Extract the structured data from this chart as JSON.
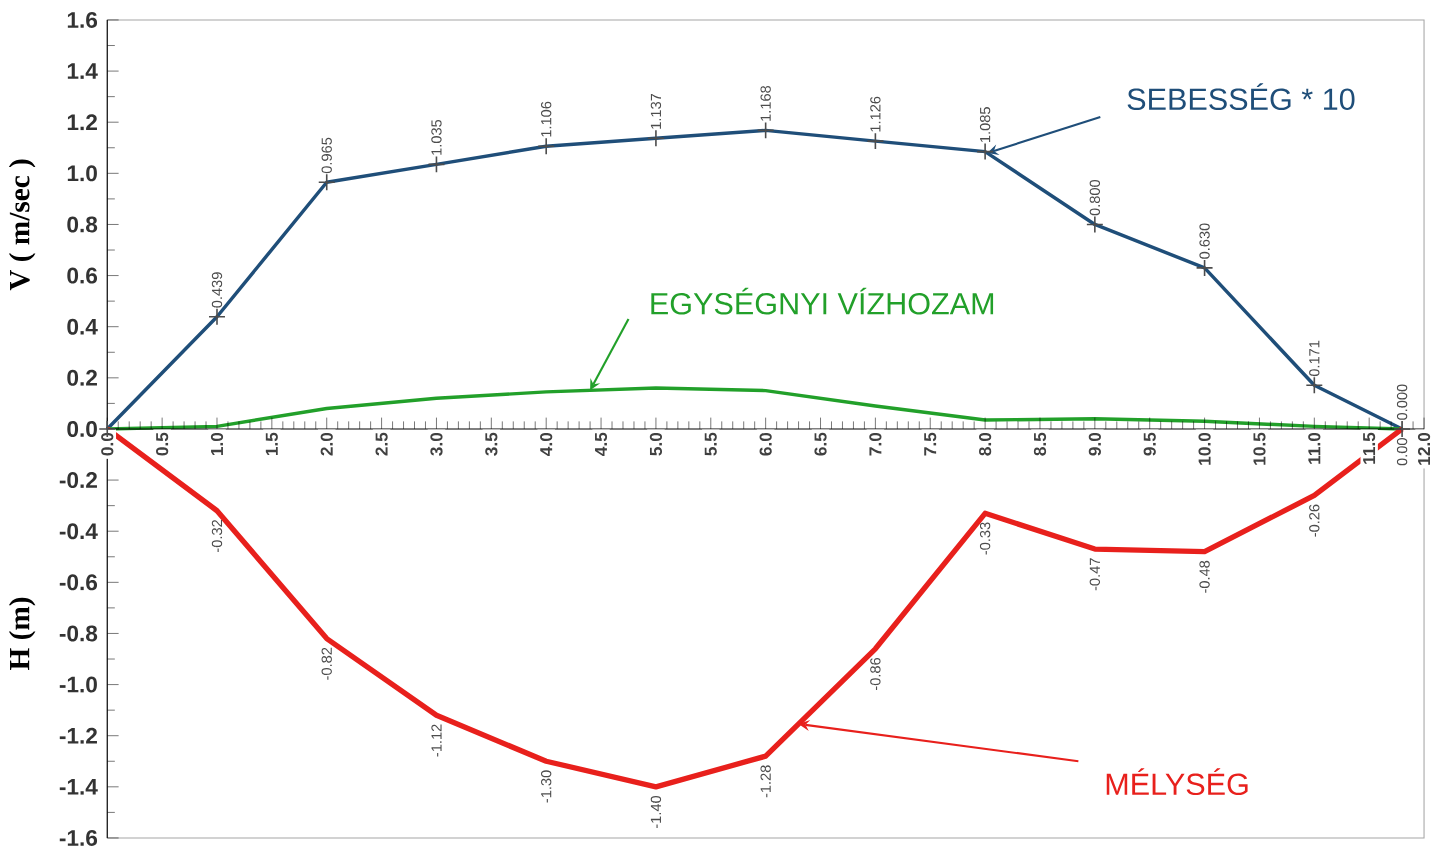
{
  "chart_data": {
    "type": "line",
    "ylabel": "V ( m/sec )",
    "annotations": [
      "H (m)"
    ],
    "x": [
      0,
      1,
      2,
      3,
      4,
      5,
      6,
      7,
      8,
      9,
      10,
      11,
      11.8
    ],
    "xlim": [
      0,
      12
    ],
    "xticks": [
      {
        "value": 0,
        "label": "0.0"
      },
      0.5,
      {
        "value": 1,
        "label": "1.0"
      },
      1.5,
      {
        "value": 2,
        "label": "2.0"
      },
      2.5,
      {
        "value": 3,
        "label": "3.0"
      },
      3.5,
      {
        "value": 4,
        "label": "4.0"
      },
      4.5,
      {
        "value": 5,
        "label": "5.0"
      },
      5.5,
      {
        "value": 6,
        "label": "6.0"
      },
      6.5,
      {
        "value": 7,
        "label": "7.0"
      },
      7.5,
      {
        "value": 8,
        "label": "8.0"
      },
      8.5,
      {
        "value": 9,
        "label": "9.0"
      },
      9.5,
      {
        "value": 10,
        "label": "10.0"
      },
      10.5,
      {
        "value": 11,
        "label": "11.0"
      },
      11.5,
      {
        "value": 12,
        "label": "12.0"
      }
    ],
    "ylim": [
      -1.6,
      1.6
    ],
    "yticks": [
      {
        "value": -1.6,
        "label": "-1.6"
      },
      {
        "value": -1.4,
        "label": "-1.4"
      },
      {
        "value": -1.2,
        "label": "-1.2"
      },
      {
        "value": -1.0,
        "label": "-1.0"
      },
      {
        "value": -0.8,
        "label": "-0.8"
      },
      {
        "value": -0.6,
        "label": "-0.6"
      },
      {
        "value": -0.4,
        "label": "-0.4"
      },
      {
        "value": -0.2,
        "label": "-0.2"
      },
      {
        "value": 0,
        "label": "0.0"
      },
      0.2,
      0.4,
      0.6,
      0.8,
      {
        "value": 1.0,
        "label": "1.0"
      },
      1.2,
      1.4,
      1.6
    ],
    "series": [
      {
        "name": "SEBESSÉG * 10",
        "color": "#1f4e79",
        "marker": "cross",
        "values": [
          0,
          0.439,
          0.965,
          1.035,
          1.106,
          1.137,
          1.168,
          1.126,
          1.085,
          0.8,
          0.63,
          0.171,
          0.0
        ],
        "value_labels": [
          null,
          "0.439",
          "0.965",
          "1.035",
          "1.106",
          "1.137",
          "1.168",
          "1.126",
          "1.085",
          "0.800",
          "0.630",
          "0.171",
          "0.000"
        ]
      },
      {
        "name": "EGYSÉGNYI VÍZHOZAM",
        "color": "#22a02a",
        "values": [
          0,
          0.01,
          0.08,
          0.12,
          0.145,
          0.16,
          0.15,
          0.09,
          0.035,
          0.04,
          0.03,
          0.01,
          0
        ]
      },
      {
        "name": "MÉLYSÉG",
        "color": "#e8201c",
        "values": [
          0,
          -0.32,
          -0.82,
          -1.12,
          -1.3,
          -1.4,
          -1.28,
          -0.86,
          -0.33,
          -0.47,
          -0.48,
          -0.26,
          0.0
        ],
        "value_labels": [
          null,
          "-0.32",
          "-0.82",
          "-1.12",
          "-1.30",
          "-1.40",
          "-1.28",
          "-0.86",
          "-0.33",
          "-0.47",
          "-0.48",
          "-0.26",
          "0.00"
        ]
      }
    ]
  }
}
